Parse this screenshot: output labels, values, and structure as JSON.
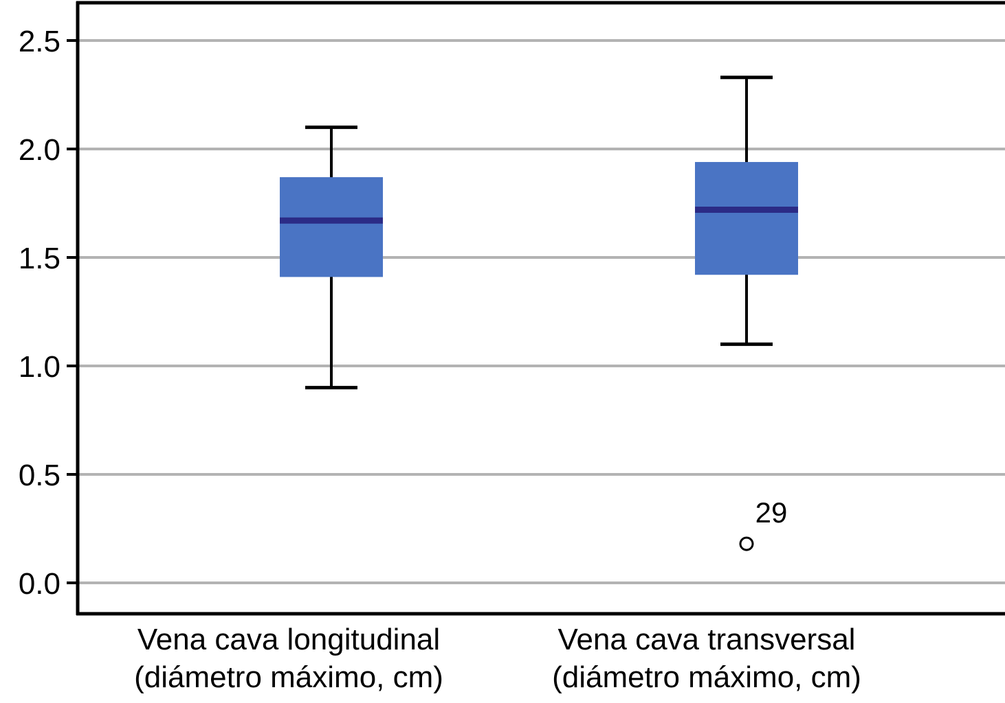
{
  "chart_data": {
    "type": "boxplot",
    "title": "",
    "xlabel": "",
    "ylabel": "",
    "ylim": [
      0.0,
      2.5
    ],
    "grid": "horizontal",
    "legend": "none",
    "yticks": [
      {
        "value": 2.5,
        "label": "2.5"
      },
      {
        "value": 2.0,
        "label": "2.0"
      },
      {
        "value": 1.5,
        "label": "1.5"
      },
      {
        "value": 1.0,
        "label": "1.0"
      },
      {
        "value": 0.5,
        "label": "0.5"
      },
      {
        "value": 0.0,
        "label": "0.0"
      }
    ],
    "boxes": [
      {
        "category_lines": [
          "Vena cava longitudinal",
          "(diámetro máximo, cm)"
        ],
        "whisker_low": 0.9,
        "q1": 1.41,
        "median": 1.67,
        "q3": 1.87,
        "whisker_high": 2.1,
        "outliers": []
      },
      {
        "category_lines": [
          "Vena cava transversal",
          "(diámetro máximo, cm)"
        ],
        "whisker_low": 1.1,
        "q1": 1.42,
        "median": 1.72,
        "q3": 1.94,
        "whisker_high": 2.33,
        "outliers": [
          {
            "value": 0.18,
            "label": "29"
          }
        ]
      }
    ],
    "colors": {
      "box_fill": "#4a74c4",
      "median_line": "#2b2b86",
      "whisker": "#000000",
      "axis_frame": "#000000",
      "gridline": "#b3b3b3",
      "outlier_stroke": "#000000",
      "outlier_fill": "#ffffff",
      "text": "#000000"
    }
  }
}
